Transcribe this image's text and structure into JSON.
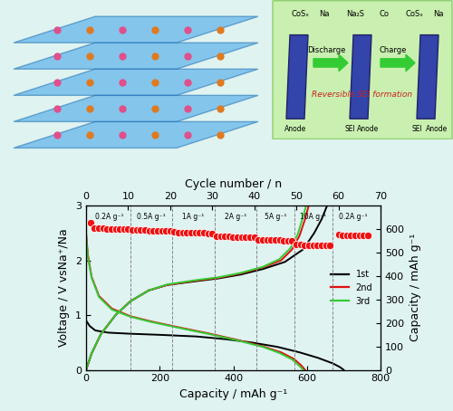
{
  "chart_data": {
    "type": "line",
    "xlabel": "Capacity / mAh g⁻¹",
    "ylabel": "Voltage / V vsNa⁺/Na",
    "xlim": [
      0,
      800
    ],
    "xticks": [
      0,
      200,
      400,
      600,
      800
    ],
    "ylim": [
      0,
      3
    ],
    "yticks": [
      0,
      1,
      2,
      3
    ],
    "legend": "center right",
    "series": [
      {
        "name": "1st",
        "color": "#000000",
        "discharge": {
          "x": [
            0,
            10,
            25,
            60,
            120,
            200,
            300,
            380,
            450,
            520,
            580,
            630,
            670,
            690,
            700
          ],
          "values": [
            0.9,
            0.8,
            0.72,
            0.68,
            0.66,
            0.64,
            0.61,
            0.56,
            0.5,
            0.42,
            0.32,
            0.22,
            0.12,
            0.05,
            0.0
          ]
        },
        "charge": {
          "x": [
            0,
            15,
            40,
            80,
            120,
            170,
            220,
            300,
            360,
            420,
            480,
            540,
            590,
            620,
            640,
            655
          ],
          "values": [
            0.0,
            0.3,
            0.65,
            1.0,
            1.25,
            1.45,
            1.55,
            1.62,
            1.67,
            1.74,
            1.84,
            1.97,
            2.2,
            2.5,
            2.75,
            3.0
          ]
        }
      },
      {
        "name": "2nd",
        "color": "#e01010",
        "discharge": {
          "x": [
            0,
            5,
            15,
            35,
            70,
            120,
            180,
            250,
            330,
            410,
            480,
            530,
            565,
            585,
            595
          ],
          "values": [
            2.5,
            2.1,
            1.7,
            1.35,
            1.12,
            0.98,
            0.88,
            0.78,
            0.67,
            0.55,
            0.43,
            0.32,
            0.2,
            0.08,
            0.0
          ]
        },
        "charge": {
          "x": [
            0,
            15,
            40,
            80,
            120,
            170,
            220,
            300,
            360,
            420,
            480,
            530,
            560,
            580,
            595,
            605
          ],
          "values": [
            0.0,
            0.3,
            0.65,
            1.0,
            1.25,
            1.45,
            1.55,
            1.63,
            1.68,
            1.76,
            1.87,
            2.0,
            2.2,
            2.45,
            2.75,
            3.0
          ]
        }
      },
      {
        "name": "3rd",
        "color": "#33cc33",
        "discharge": {
          "x": [
            0,
            5,
            15,
            35,
            70,
            120,
            180,
            250,
            330,
            410,
            480,
            525,
            560,
            580,
            590
          ],
          "values": [
            2.45,
            2.05,
            1.68,
            1.33,
            1.1,
            0.97,
            0.87,
            0.77,
            0.66,
            0.54,
            0.42,
            0.31,
            0.19,
            0.07,
            0.0
          ]
        },
        "charge": {
          "x": [
            0,
            15,
            40,
            80,
            120,
            170,
            220,
            300,
            360,
            420,
            480,
            525,
            555,
            575,
            588,
            598
          ],
          "values": [
            0.0,
            0.3,
            0.65,
            1.0,
            1.25,
            1.45,
            1.56,
            1.64,
            1.69,
            1.77,
            1.88,
            2.02,
            2.22,
            2.47,
            2.76,
            3.0
          ]
        }
      }
    ],
    "rate": {
      "xlabel": "Cycle number / n",
      "ylabel": "Capacity / mAh g⁻¹",
      "xlim": [
        0,
        70
      ],
      "xticks": [
        0,
        10,
        20,
        30,
        40,
        50,
        60,
        70
      ],
      "y2lim": [
        0,
        700
      ],
      "y2ticks": [
        0,
        100,
        200,
        300,
        400,
        500,
        600
      ],
      "color": "#ee1111",
      "marker": "circle",
      "boundaries": [
        10.5,
        20.5,
        30.5,
        40.5,
        49.5,
        58.5
      ],
      "segments": [
        {
          "label": "0.2A g⁻¹",
          "cycles": [
            1,
            2,
            3,
            4,
            5,
            6,
            7,
            8,
            9,
            10
          ],
          "values": [
            625,
            605,
            603,
            602,
            601,
            600,
            600,
            599,
            598,
            598
          ]
        },
        {
          "label": "0.5A g⁻¹",
          "cycles": [
            11,
            12,
            13,
            14,
            15,
            16,
            17,
            18,
            19,
            20
          ],
          "values": [
            596,
            595,
            594,
            594,
            593,
            593,
            592,
            592,
            591,
            591
          ]
        },
        {
          "label": "1A g⁻¹",
          "cycles": [
            21,
            22,
            23,
            24,
            25,
            26,
            27,
            28,
            29,
            30
          ],
          "values": [
            587,
            586,
            585,
            585,
            584,
            584,
            583,
            583,
            582,
            582
          ]
        },
        {
          "label": "2A g⁻¹",
          "cycles": [
            31,
            32,
            33,
            34,
            35,
            36,
            37,
            38,
            39,
            40
          ],
          "values": [
            570,
            569,
            568,
            568,
            567,
            567,
            566,
            566,
            565,
            565
          ]
        },
        {
          "label": "5A g⁻¹",
          "cycles": [
            41,
            42,
            43,
            44,
            45,
            46,
            47,
            48,
            49
          ],
          "values": [
            555,
            554,
            553,
            553,
            552,
            552,
            551,
            551,
            550
          ]
        },
        {
          "label": "10A g⁻¹",
          "cycles": [
            50,
            51,
            52,
            53,
            54,
            55,
            56,
            57,
            58
          ],
          "values": [
            535,
            533,
            532,
            531,
            531,
            530,
            530,
            529,
            529
          ]
        },
        {
          "label": "0.2A g⁻¹",
          "cycles": [
            60,
            61,
            62,
            63,
            64,
            65,
            66,
            67
          ],
          "values": [
            575,
            574,
            574,
            573,
            573,
            572,
            572,
            572
          ]
        }
      ]
    }
  },
  "schematic": {
    "labels": [
      "CoSₓ",
      "Na",
      "Discharge",
      "Na₂S",
      "Co",
      "Charge",
      "CoSₓ",
      "Na",
      "Anode",
      "SEI",
      "Anode",
      "SEI",
      "Anode",
      "Reversible SEI formation"
    ]
  }
}
